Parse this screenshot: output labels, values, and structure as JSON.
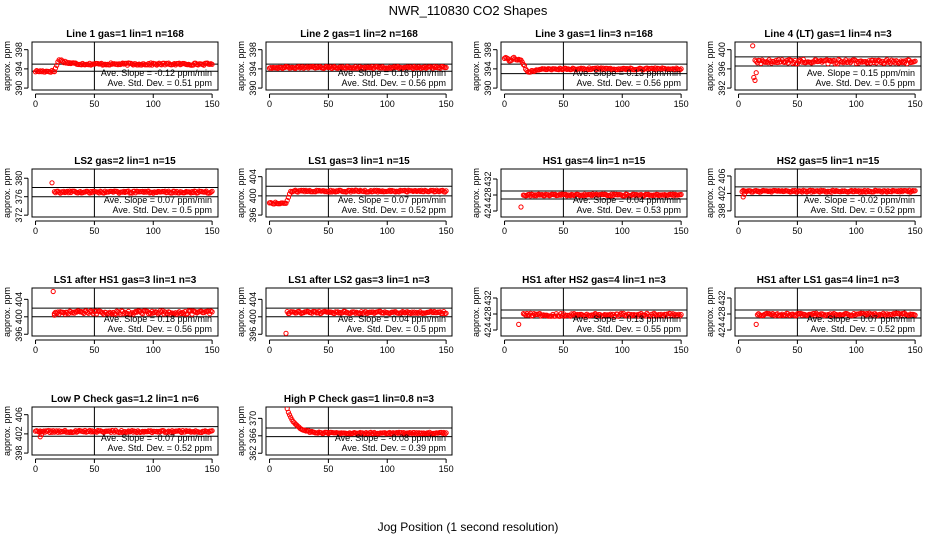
{
  "figure": {
    "title": "NWR_110830  CO2 Shapes",
    "xlabel": "Jog Position (1 second resolution)"
  },
  "colors": {
    "points": "#ff0000",
    "axes": "#000000",
    "background": "#ffffff"
  },
  "chart_data": [
    {
      "type": "scatter",
      "title": "Line 1 gas=1 lin=1 n=168",
      "ylabel": "approx. ppm",
      "xlim": [
        -3,
        155
      ],
      "ylim": [
        389.6,
        399.6
      ],
      "xticks": [
        0,
        50,
        100,
        150
      ],
      "yticks": [
        390,
        394,
        398
      ],
      "hlines": [
        393.5,
        395.0
      ],
      "vline": 50,
      "stat_slope": "Ave. Slope = -0.12 ppm/min",
      "stat_sd": "Ave. Std. Dev. = 0.51 ppm",
      "shape": "bump",
      "base": 395.0,
      "noise": 0.22,
      "start": 0,
      "params": {
        "pre": 393.5,
        "tpeak": 20,
        "peak": 396.0
      }
    },
    {
      "type": "scatter",
      "title": "Line 2 gas=1 lin=2 n=168",
      "ylabel": "approx. ppm",
      "xlim": [
        -3,
        155
      ],
      "ylim": [
        389.6,
        399.6
      ],
      "xticks": [
        0,
        50,
        100,
        150
      ],
      "yticks": [
        390,
        394,
        398
      ],
      "hlines": [
        393.5,
        395.0
      ],
      "vline": 50,
      "stat_slope": "Ave. Slope = 0.16 ppm/min",
      "stat_sd": "Ave. Std. Dev. = 0.56 ppm",
      "shape": "flat",
      "base": 394.3,
      "noise": 0.2,
      "start": 0
    },
    {
      "type": "scatter",
      "title": "Line 3 gas=1 lin=3 n=168",
      "ylabel": "approx. ppm",
      "xlim": [
        -3,
        155
      ],
      "ylim": [
        389.6,
        399.6
      ],
      "xticks": [
        0,
        50,
        100,
        150
      ],
      "yticks": [
        390,
        394,
        398
      ],
      "hlines": [
        393.0,
        395.0
      ],
      "vline": 50,
      "stat_slope": "Ave. Slope = 0.13 ppm/min",
      "stat_sd": "Ave. Std. Dev. = 0.56 ppm",
      "shape": "dropfirst",
      "base": 394.0,
      "noise": 0.2,
      "start": 0,
      "params": {
        "hi": 396.0,
        "tdrop": 20
      }
    },
    {
      "type": "scatter",
      "title": "Line 4 (LT) gas=1 lin=4 n=3",
      "ylabel": "approx. ppm",
      "xlim": [
        -3,
        155
      ],
      "ylim": [
        391.6,
        401.6
      ],
      "xticks": [
        0,
        50,
        100,
        150
      ],
      "yticks": [
        392,
        396,
        400
      ],
      "hlines": [
        396.6,
        398.5
      ],
      "vline": 50,
      "stat_slope": "Ave. Slope = 0.15 ppm/min",
      "stat_sd": "Ave. Std. Dev. = 0.5 ppm",
      "shape": "flat",
      "base": 397.5,
      "noise": 0.45,
      "start": 14,
      "outliers": [
        [
          12,
          400.8
        ],
        [
          13,
          394.2
        ],
        [
          14,
          393.6
        ],
        [
          15,
          395.2
        ]
      ]
    },
    {
      "type": "scatter",
      "title": "LS2 gas=2 lin=1 n=15",
      "ylabel": "approx. ppm",
      "xlim": [
        -3,
        155
      ],
      "ylim": [
        371.6,
        382.0
      ],
      "xticks": [
        0,
        50,
        100,
        150
      ],
      "yticks": [
        372,
        376,
        380
      ],
      "hlines": [
        376.0,
        378.0
      ],
      "vline": 50,
      "stat_slope": "Ave. Slope = 0.07 ppm/min",
      "stat_sd": "Ave. Std. Dev. = 0.5 ppm",
      "shape": "flat",
      "base": 377.0,
      "noise": 0.22,
      "start": 16,
      "outliers": [
        [
          14,
          379.0
        ]
      ]
    },
    {
      "type": "scatter",
      "title": "LS1 gas=3 lin=1 n=15",
      "ylabel": "approx. ppm",
      "xlim": [
        -3,
        155
      ],
      "ylim": [
        395.6,
        405.6
      ],
      "xticks": [
        0,
        50,
        100,
        150
      ],
      "yticks": [
        396,
        400,
        404
      ],
      "hlines": [
        400.0,
        402.0
      ],
      "vline": 50,
      "stat_slope": "Ave. Slope = 0.07 ppm/min",
      "stat_sd": "Ave. Std. Dev. = 0.52 ppm",
      "shape": "riseearly",
      "base": 401.0,
      "noise": 0.2,
      "start": 0,
      "params": {
        "lo": 398.5,
        "tstep": 14
      }
    },
    {
      "type": "scatter",
      "title": "HS1 gas=4 lin=1 n=15",
      "ylabel": "approx. ppm",
      "xlim": [
        -3,
        155
      ],
      "ylim": [
        422.5,
        434.5
      ],
      "xticks": [
        0,
        50,
        100,
        150
      ],
      "yticks": [
        424,
        428,
        432
      ],
      "hlines": [
        427.0,
        429.0
      ],
      "vline": 50,
      "stat_slope": "Ave. Slope = 0.04 ppm/min",
      "stat_sd": "Ave. Std. Dev. = 0.53 ppm",
      "shape": "flat",
      "base": 428.0,
      "noise": 0.22,
      "start": 16,
      "outliers": [
        [
          14,
          425.0
        ]
      ]
    },
    {
      "type": "scatter",
      "title": "HS2 gas=5 lin=1 n=15",
      "ylabel": "approx. ppm",
      "xlim": [
        -3,
        155
      ],
      "ylim": [
        396.6,
        407.6
      ],
      "xticks": [
        0,
        50,
        100,
        150
      ],
      "yticks": [
        398,
        402,
        406
      ],
      "hlines": [
        401.5,
        403.5
      ],
      "vline": 50,
      "stat_slope": "Ave. Slope = -0.02 ppm/min",
      "stat_sd": "Ave. Std. Dev. = 0.52 ppm",
      "shape": "flat",
      "base": 402.5,
      "noise": 0.2,
      "start": 3,
      "outliers": [
        [
          4,
          401.2
        ],
        [
          5,
          401.8
        ]
      ]
    },
    {
      "type": "scatter",
      "title": "LS1 after HS1 gas=3 lin=1 n=3",
      "ylabel": "approx. ppm",
      "xlim": [
        -3,
        155
      ],
      "ylim": [
        395.6,
        406.6
      ],
      "xticks": [
        0,
        50,
        100,
        150
      ],
      "yticks": [
        396,
        400,
        404
      ],
      "hlines": [
        400.0,
        402.0
      ],
      "vline": 50,
      "stat_slope": "Ave. Slope = 0.18 ppm/min",
      "stat_sd": "Ave. Std. Dev. = 0.56 ppm",
      "shape": "flat",
      "base": 401.0,
      "noise": 0.4,
      "start": 16,
      "outliers": [
        [
          15,
          405.8
        ],
        [
          16,
          400.4
        ]
      ]
    },
    {
      "type": "scatter",
      "title": "LS1 after LS2 gas=3 lin=1 n=3",
      "ylabel": "approx. ppm",
      "xlim": [
        -3,
        155
      ],
      "ylim": [
        395.6,
        406.6
      ],
      "xticks": [
        0,
        50,
        100,
        150
      ],
      "yticks": [
        396,
        400,
        404
      ],
      "hlines": [
        400.0,
        402.0
      ],
      "vline": 50,
      "stat_slope": "Ave. Slope = 0.04 ppm/min",
      "stat_sd": "Ave. Std. Dev. = 0.5 ppm",
      "shape": "flat",
      "base": 401.0,
      "noise": 0.25,
      "start": 16,
      "outliers": [
        [
          14,
          396.2
        ],
        [
          15,
          401.2
        ]
      ]
    },
    {
      "type": "scatter",
      "title": "HS1 after HS2 gas=4 lin=1 n=3",
      "ylabel": "approx. ppm",
      "xlim": [
        -3,
        155
      ],
      "ylim": [
        422.5,
        434.5
      ],
      "xticks": [
        0,
        50,
        100,
        150
      ],
      "yticks": [
        424,
        428,
        432
      ],
      "hlines": [
        427.0,
        429.0
      ],
      "vline": 50,
      "stat_slope": "Ave. Slope = 0.13 ppm/min",
      "stat_sd": "Ave. Std. Dev. = 0.55 ppm",
      "shape": "flat",
      "base": 427.8,
      "noise": 0.38,
      "start": 16,
      "outliers": [
        [
          12,
          425.4
        ]
      ]
    },
    {
      "type": "scatter",
      "title": "HS1 after LS1 gas=4 lin=1 n=3",
      "ylabel": "approx. ppm",
      "xlim": [
        -3,
        155
      ],
      "ylim": [
        422.5,
        434.5
      ],
      "xticks": [
        0,
        50,
        100,
        150
      ],
      "yticks": [
        424,
        428,
        432
      ],
      "hlines": [
        427.0,
        429.0
      ],
      "vline": 50,
      "stat_slope": "Ave. Slope = 0.07 ppm/min",
      "stat_sd": "Ave. Std. Dev. = 0.52 ppm",
      "shape": "flat",
      "base": 427.9,
      "noise": 0.32,
      "start": 17,
      "outliers": [
        [
          15,
          425.4
        ],
        [
          16,
          427.8
        ]
      ]
    },
    {
      "type": "scatter",
      "title": "Low P Check gas=1.2 lin=1 n=6",
      "ylabel": "approx. ppm",
      "xlim": [
        -3,
        155
      ],
      "ylim": [
        397.6,
        407.6
      ],
      "xticks": [
        0,
        50,
        100,
        150
      ],
      "yticks": [
        398,
        402,
        406
      ],
      "hlines": [
        401.5,
        403.5
      ],
      "vline": 50,
      "stat_slope": "Ave. Slope = -0.07 ppm/min",
      "stat_sd": "Ave. Std. Dev. = 0.52 ppm",
      "shape": "flat",
      "base": 402.5,
      "noise": 0.22,
      "start": 0,
      "outliers": [
        [
          4,
          401.4
        ],
        [
          5,
          401.9
        ]
      ]
    },
    {
      "type": "scatter",
      "title": "High P Check gas=1 lin=0.8 n=3",
      "ylabel": "approx. ppm",
      "xlim": [
        -3,
        155
      ],
      "ylim": [
        361.6,
        372.6
      ],
      "xticks": [
        0,
        50,
        100,
        150
      ],
      "yticks": [
        362,
        366,
        370
      ],
      "hlines": [
        365.8,
        367.8
      ],
      "vline": 50,
      "stat_slope": "Ave. Slope = -0.08 ppm/min",
      "stat_sd": "Ave. Std. Dev. = 0.39 ppm",
      "shape": "decay",
      "base": 366.6,
      "noise": 0.18,
      "start": 14,
      "params": {
        "amp": 6.5,
        "tau": 7
      }
    }
  ]
}
